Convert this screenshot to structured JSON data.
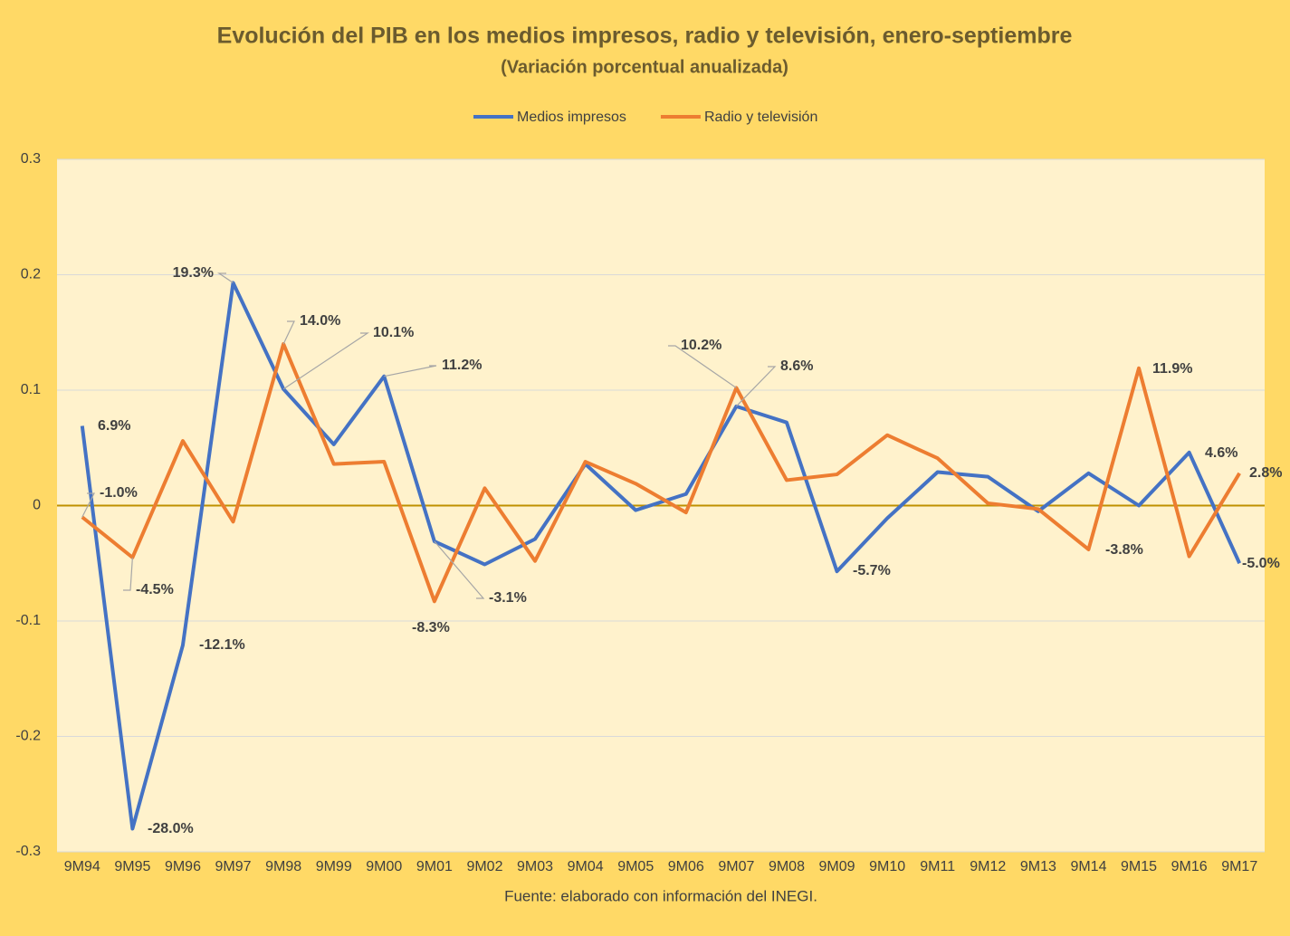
{
  "chart_data": {
    "type": "line",
    "title": "Evolución del PIB en los medios impresos, radio y televisión, enero-septiembre",
    "subtitle": "(Variación porcentual anualizada)",
    "source": "Fuente: elaborado con información del INEGI.",
    "categories": [
      "9M94",
      "9M95",
      "9M96",
      "9M97",
      "9M98",
      "9M99",
      "9M00",
      "9M01",
      "9M02",
      "9M03",
      "9M04",
      "9M05",
      "9M06",
      "9M07",
      "9M08",
      "9M09",
      "9M10",
      "9M11",
      "9M12",
      "9M13",
      "9M14",
      "9M15",
      "9M16",
      "9M17"
    ],
    "series": [
      {
        "name": "Medios impresos",
        "color": "#4472c4",
        "values": [
          0.069,
          -0.28,
          -0.121,
          0.193,
          0.101,
          0.053,
          0.112,
          -0.031,
          -0.051,
          -0.029,
          0.036,
          -0.004,
          0.01,
          0.086,
          0.072,
          -0.057,
          -0.011,
          0.029,
          0.025,
          -0.005,
          0.028,
          0.0,
          0.046,
          -0.05
        ],
        "value_labels": [
          "6.9%",
          "-28.0%",
          "-12.1%",
          "19.3%",
          "10.1%",
          null,
          "11.2%",
          "-3.1%",
          null,
          null,
          null,
          null,
          null,
          "8.6%",
          null,
          "-5.7%",
          null,
          null,
          null,
          null,
          null,
          null,
          "4.6%",
          "-5.0%"
        ]
      },
      {
        "name": "Radio y televisión",
        "color": "#ed7d31",
        "values": [
          -0.01,
          -0.045,
          0.056,
          -0.014,
          0.14,
          0.036,
          0.038,
          -0.083,
          0.015,
          -0.048,
          0.038,
          0.019,
          -0.006,
          0.102,
          0.022,
          0.027,
          0.061,
          0.041,
          0.002,
          -0.003,
          -0.038,
          0.119,
          -0.044,
          0.028
        ],
        "value_labels": [
          "-1.0%",
          "-4.5%",
          null,
          null,
          "14.0%",
          null,
          null,
          "-8.3%",
          null,
          null,
          null,
          null,
          null,
          "10.2%",
          null,
          null,
          null,
          null,
          null,
          null,
          "-3.8%",
          "11.9%",
          null,
          "2.8%"
        ]
      }
    ],
    "ylim": [
      -0.3,
      0.3
    ],
    "yticks": [
      -0.3,
      -0.2,
      -0.1,
      0,
      0.1,
      0.2,
      0.3
    ],
    "grid": true,
    "legend": "top"
  }
}
